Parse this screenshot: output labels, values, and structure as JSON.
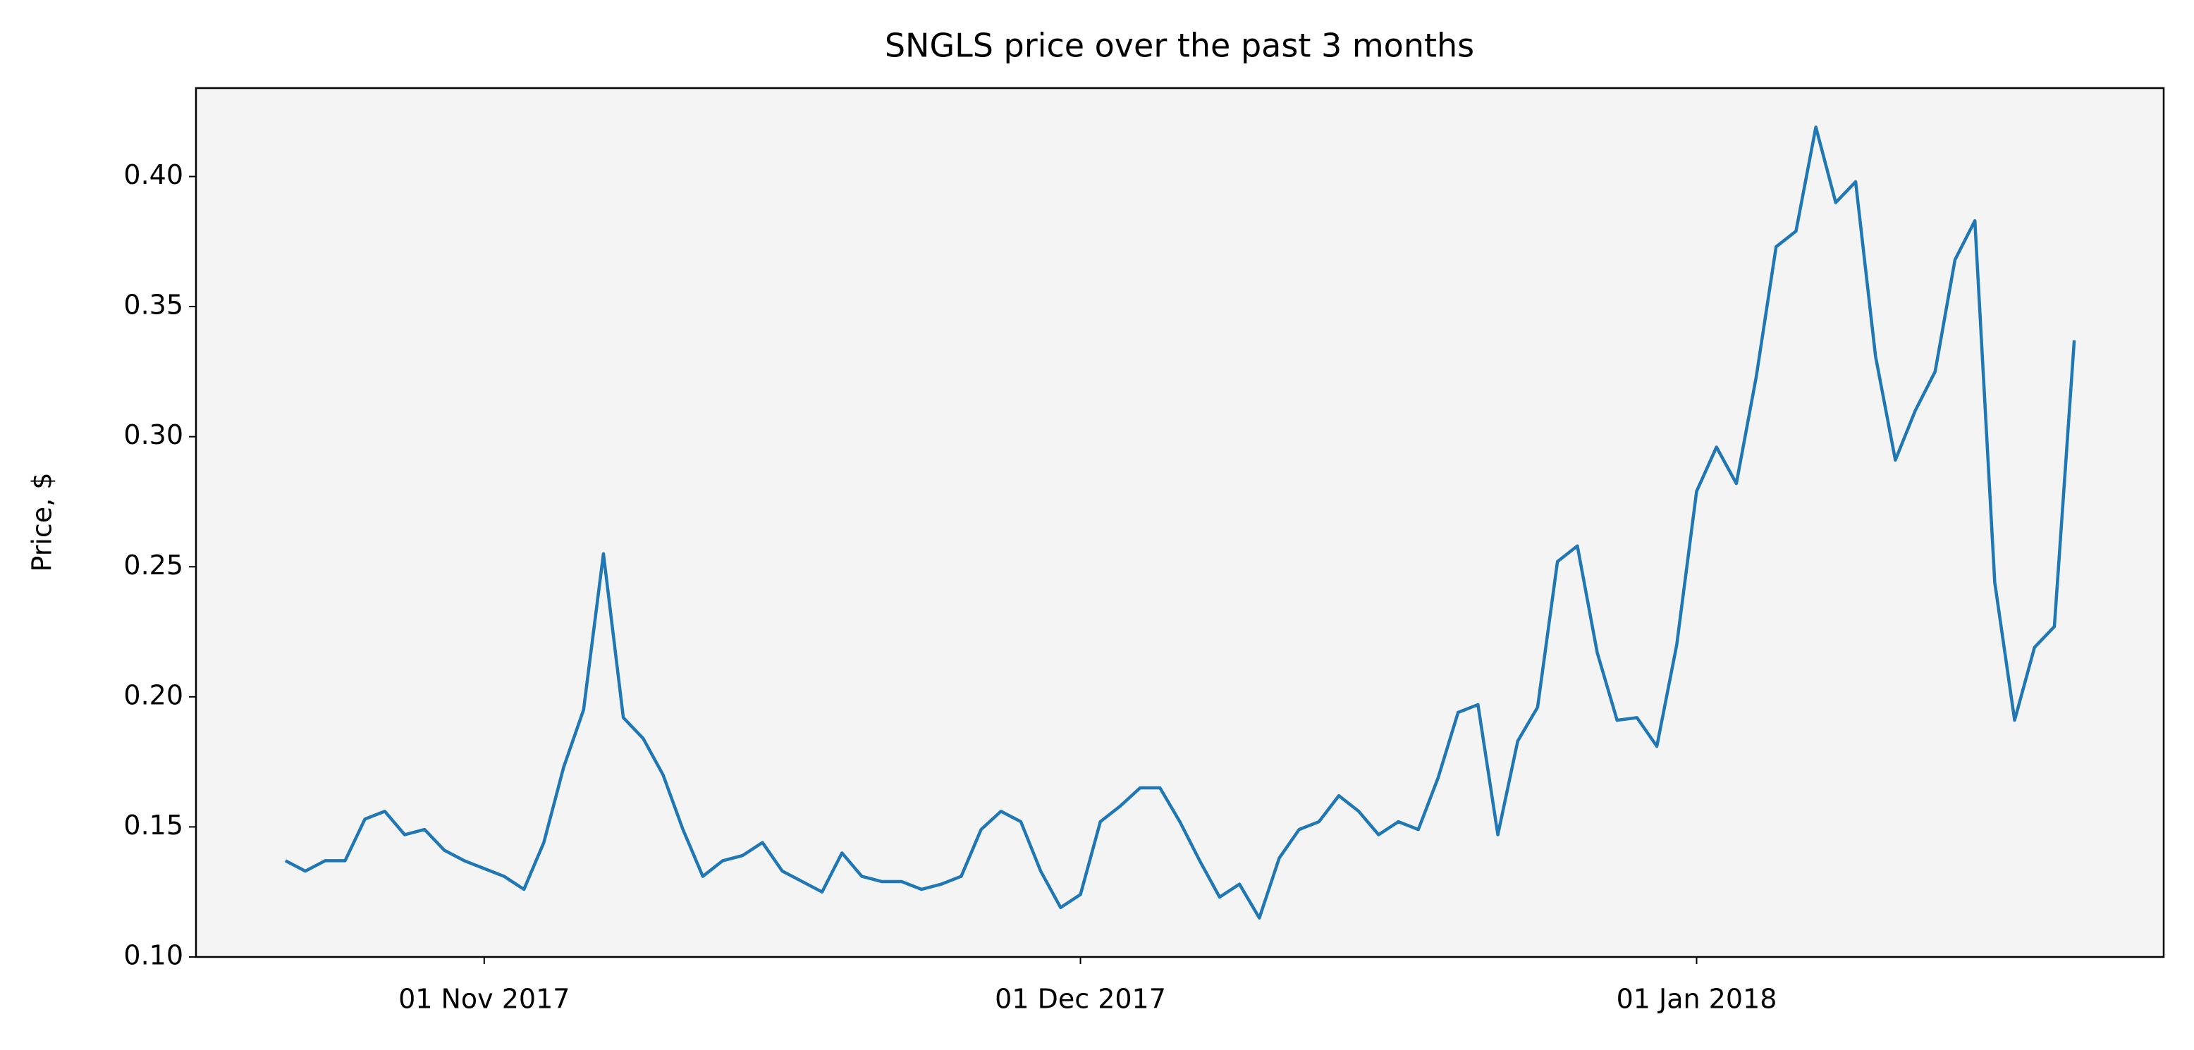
{
  "chart_data": {
    "type": "line",
    "title": "SNGLS price over the past 3 months",
    "ylabel": "Price, $",
    "color": "#1f77b4",
    "background": "#f4f4f4",
    "grid": false,
    "x": [
      "2017-10-22",
      "2017-10-23",
      "2017-10-24",
      "2017-10-25",
      "2017-10-26",
      "2017-10-27",
      "2017-10-28",
      "2017-10-29",
      "2017-10-30",
      "2017-10-31",
      "2017-11-01",
      "2017-11-02",
      "2017-11-03",
      "2017-11-04",
      "2017-11-05",
      "2017-11-06",
      "2017-11-07",
      "2017-11-08",
      "2017-11-09",
      "2017-11-10",
      "2017-11-11",
      "2017-11-12",
      "2017-11-13",
      "2017-11-14",
      "2017-11-15",
      "2017-11-16",
      "2017-11-17",
      "2017-11-18",
      "2017-11-19",
      "2017-11-20",
      "2017-11-21",
      "2017-11-22",
      "2017-11-23",
      "2017-11-24",
      "2017-11-25",
      "2017-11-26",
      "2017-11-27",
      "2017-11-28",
      "2017-11-29",
      "2017-11-30",
      "2017-12-01",
      "2017-12-02",
      "2017-12-03",
      "2017-12-04",
      "2017-12-05",
      "2017-12-06",
      "2017-12-07",
      "2017-12-08",
      "2017-12-09",
      "2017-12-10",
      "2017-12-11",
      "2017-12-12",
      "2017-12-13",
      "2017-12-14",
      "2017-12-15",
      "2017-12-16",
      "2017-12-17",
      "2017-12-18",
      "2017-12-19",
      "2017-12-20",
      "2017-12-21",
      "2017-12-22",
      "2017-12-23",
      "2017-12-24",
      "2017-12-25",
      "2017-12-26",
      "2017-12-27",
      "2017-12-28",
      "2017-12-29",
      "2017-12-30",
      "2017-12-31",
      "2018-01-01",
      "2018-01-02",
      "2018-01-03",
      "2018-01-04",
      "2018-01-05",
      "2018-01-06",
      "2018-01-07",
      "2018-01-08",
      "2018-01-09",
      "2018-01-10",
      "2018-01-11",
      "2018-01-12",
      "2018-01-13",
      "2018-01-14",
      "2018-01-15",
      "2018-01-16",
      "2018-01-17",
      "2018-01-18",
      "2018-01-19",
      "2018-01-20"
    ],
    "values": [
      0.137,
      0.133,
      0.137,
      0.137,
      0.153,
      0.156,
      0.147,
      0.149,
      0.141,
      0.137,
      0.134,
      0.131,
      0.126,
      0.144,
      0.173,
      0.195,
      0.255,
      0.192,
      0.184,
      0.17,
      0.149,
      0.131,
      0.137,
      0.139,
      0.144,
      0.133,
      0.129,
      0.125,
      0.14,
      0.131,
      0.129,
      0.129,
      0.126,
      0.128,
      0.131,
      0.149,
      0.156,
      0.152,
      0.133,
      0.119,
      0.124,
      0.152,
      0.158,
      0.165,
      0.165,
      0.152,
      0.137,
      0.123,
      0.128,
      0.115,
      0.138,
      0.149,
      0.152,
      0.162,
      0.156,
      0.147,
      0.152,
      0.149,
      0.169,
      0.194,
      0.197,
      0.147,
      0.183,
      0.196,
      0.252,
      0.258,
      0.217,
      0.191,
      0.192,
      0.181,
      0.22,
      0.279,
      0.296,
      0.282,
      0.323,
      0.373,
      0.379,
      0.419,
      0.39,
      0.398,
      0.331,
      0.291,
      0.31,
      0.325,
      0.368,
      0.383,
      0.244,
      0.191,
      0.219,
      0.227,
      0.337
    ],
    "xlim": [
      "2017-10-17T12:00Z",
      "2018-01-24T12:00Z"
    ],
    "xticks": [
      {
        "value": "2017-11-01",
        "label": "01 Nov 2017"
      },
      {
        "value": "2017-12-01",
        "label": "01 Dec 2017"
      },
      {
        "value": "2018-01-01",
        "label": "01 Jan 2018"
      }
    ],
    "ylim": [
      0.1,
      0.434
    ],
    "yticks": [
      {
        "value": 0.1,
        "label": "0.10"
      },
      0.15,
      {
        "value": 0.2,
        "label": "0.20"
      },
      0.25,
      {
        "value": 0.3,
        "label": "0.30"
      },
      0.35,
      {
        "value": 0.4,
        "label": "0.40"
      }
    ]
  }
}
